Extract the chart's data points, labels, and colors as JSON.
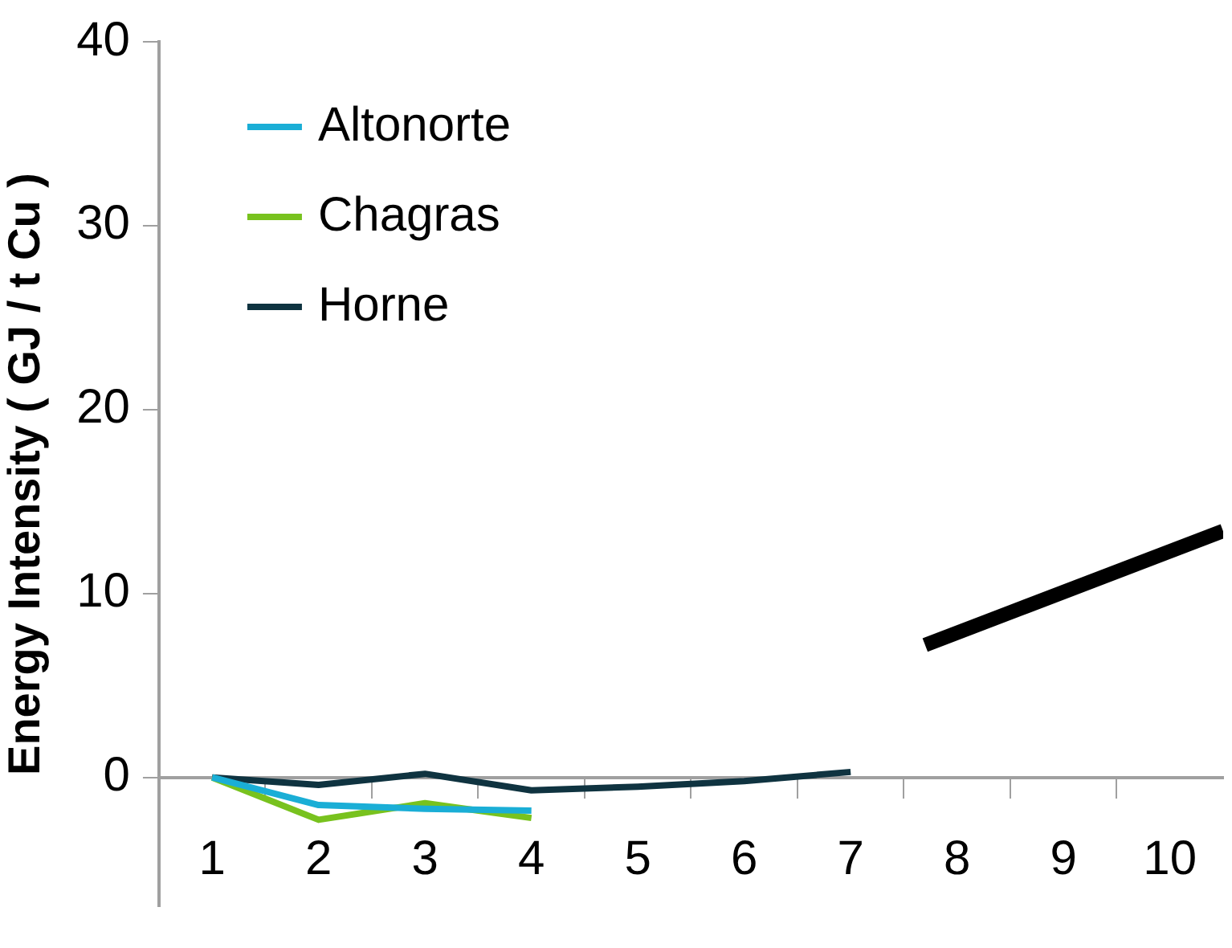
{
  "chart_data": {
    "type": "line",
    "ylabel": "Energy Intensity ( GJ / t Cu )",
    "legend": "top left",
    "grid": false,
    "marker": "none",
    "line_style": "solid",
    "xlim": [
      0.5,
      10.5
    ],
    "xticks": [
      1,
      {
        "value": 1.5,
        "label": null
      },
      2,
      {
        "value": 2.5,
        "label": null
      },
      3,
      {
        "value": 3.5,
        "label": null
      },
      4,
      {
        "value": 4.5,
        "label": null
      },
      5,
      {
        "value": 5.5,
        "label": null
      },
      6,
      {
        "value": 6.5,
        "label": null
      },
      7,
      {
        "value": 7.5,
        "label": null
      },
      8,
      {
        "value": 8.5,
        "label": null
      },
      9,
      {
        "value": 9.5,
        "label": null
      },
      10
    ],
    "ylim": [
      -7,
      40
    ],
    "yticks": [
      0,
      10,
      20,
      30,
      40
    ],
    "series": [
      {
        "name": "Altonorte",
        "color": "#1aaed6",
        "x": [
          1,
          2,
          3,
          4
        ],
        "values": [
          0,
          -1.5,
          -1.7,
          -1.8
        ]
      },
      {
        "name": "Chagras",
        "color": "#78c21e",
        "x": [
          1,
          2,
          3,
          4
        ],
        "values": [
          0,
          -2.3,
          -1.4,
          -2.2
        ]
      },
      {
        "name": "Horne",
        "color": "#0f3340",
        "x": [
          1,
          2,
          3,
          4,
          5,
          6,
          7
        ],
        "values": [
          0,
          -0.4,
          0.2,
          -0.7,
          -0.5,
          -0.2,
          0.3
        ]
      },
      {
        "type": "line",
        "color": "#000000",
        "x": [
          7.7,
          10.5
        ],
        "values": [
          7.2,
          13.4
        ]
      }
    ]
  }
}
